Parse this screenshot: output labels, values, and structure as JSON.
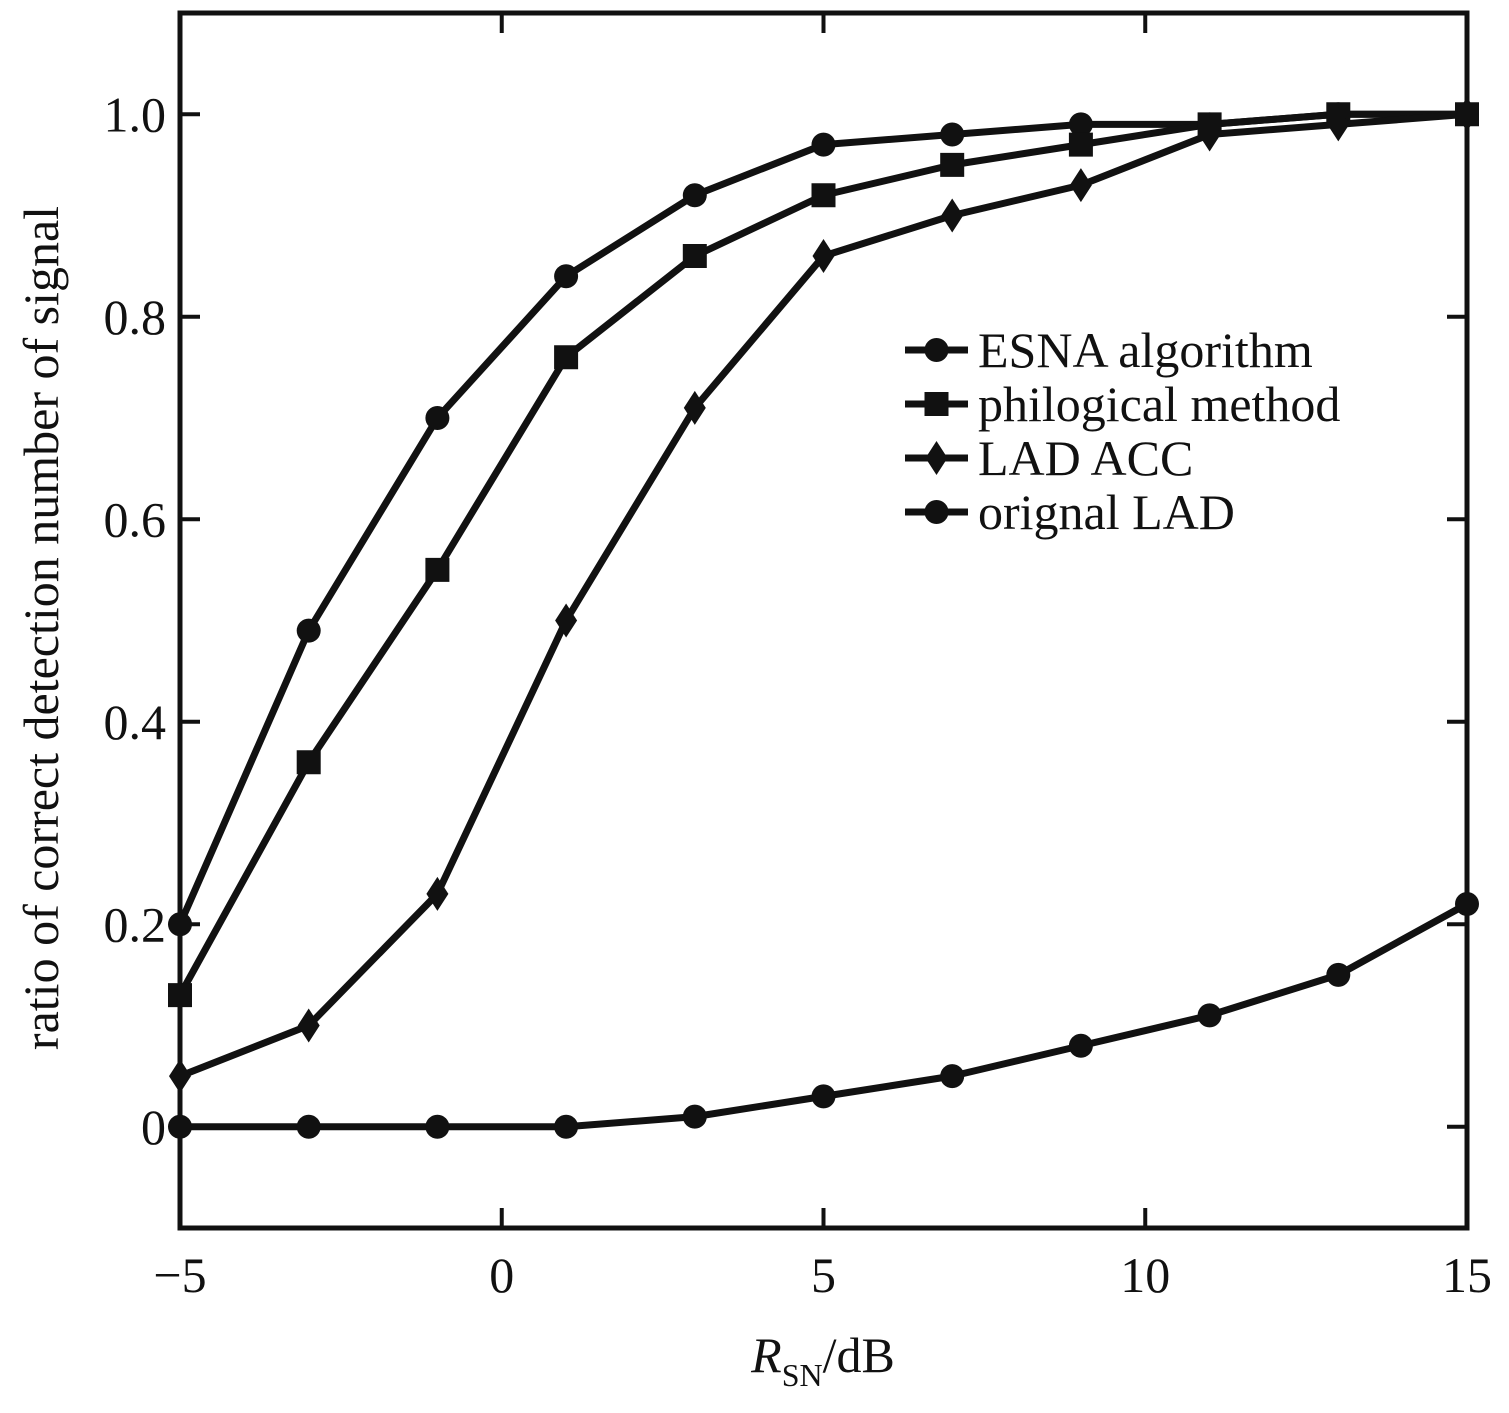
{
  "chart_data": {
    "type": "line",
    "title": "",
    "xlabel": {
      "main": "R",
      "sub": "SN",
      "suffix": "/dB"
    },
    "ylabel": "ratio of correct detection number of signal",
    "xlim": [
      -5,
      15
    ],
    "ylim": [
      -0.1,
      1.1
    ],
    "x_ticks": [
      -5,
      0,
      5,
      10,
      15
    ],
    "x_tick_labels": [
      "−5",
      "0",
      "5",
      "10",
      "15"
    ],
    "y_ticks": [
      0,
      0.2,
      0.4,
      0.6,
      0.8,
      1.0
    ],
    "y_tick_labels": [
      "0",
      "0.2",
      "0.4",
      "0.6",
      "0.8",
      "1.0"
    ],
    "grid": false,
    "legend_position": "center-right",
    "x": [
      -5,
      -3,
      -1,
      1,
      3,
      5,
      7,
      9,
      11,
      13,
      15
    ],
    "series": [
      {
        "name": "ESNA algorithm",
        "marker": "circle",
        "color": "#111111",
        "values": [
          0.2,
          0.49,
          0.7,
          0.84,
          0.92,
          0.97,
          0.98,
          0.99,
          0.99,
          1.0,
          1.0
        ]
      },
      {
        "name": "philogical method",
        "marker": "square",
        "color": "#111111",
        "values": [
          0.13,
          0.36,
          0.55,
          0.76,
          0.86,
          0.92,
          0.95,
          0.97,
          0.99,
          1.0,
          1.0
        ]
      },
      {
        "name": "LAD ACC",
        "marker": "diamond",
        "color": "#111111",
        "values": [
          0.05,
          0.1,
          0.23,
          0.5,
          0.71,
          0.86,
          0.9,
          0.93,
          0.98,
          0.99,
          1.0
        ]
      },
      {
        "name": "orignal LAD",
        "marker": "circle",
        "color": "#111111",
        "values": [
          0.0,
          0.0,
          0.0,
          0.0,
          0.01,
          0.03,
          0.05,
          0.08,
          0.11,
          0.15,
          0.22
        ]
      }
    ]
  }
}
